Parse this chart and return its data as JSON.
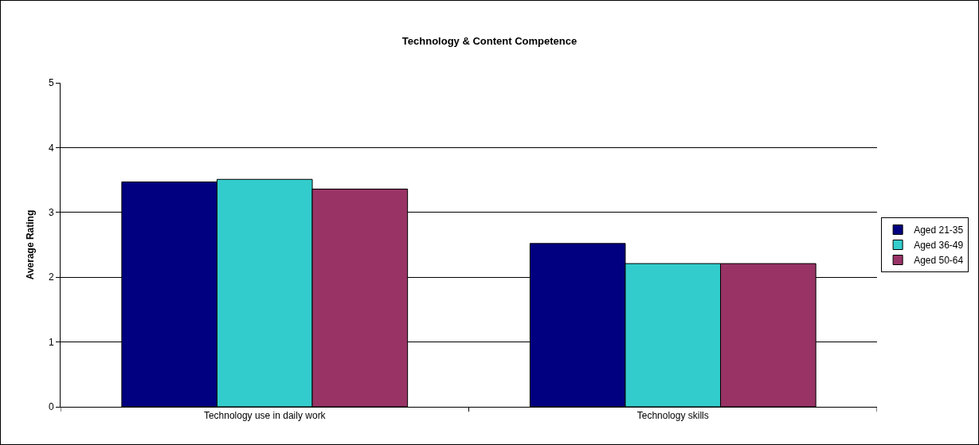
{
  "chart_data": {
    "type": "bar",
    "title": "Technology & Content Competence",
    "ylabel": "Average Rating",
    "categories": [
      "Technology use in daily work",
      "Technology skills"
    ],
    "series": [
      {
        "name": "Aged 21-35",
        "color": "#000080",
        "values": [
          3.47,
          2.52
        ]
      },
      {
        "name": "Aged 36-49",
        "color": "#33cccc",
        "values": [
          3.51,
          2.21
        ]
      },
      {
        "name": "Aged 50-64",
        "color": "#993366",
        "values": [
          3.36,
          2.21
        ]
      }
    ],
    "ylim": [
      0,
      5
    ],
    "yticks": [
      0,
      1,
      2,
      3,
      4,
      5
    ],
    "grid": "y",
    "legend": "right"
  }
}
